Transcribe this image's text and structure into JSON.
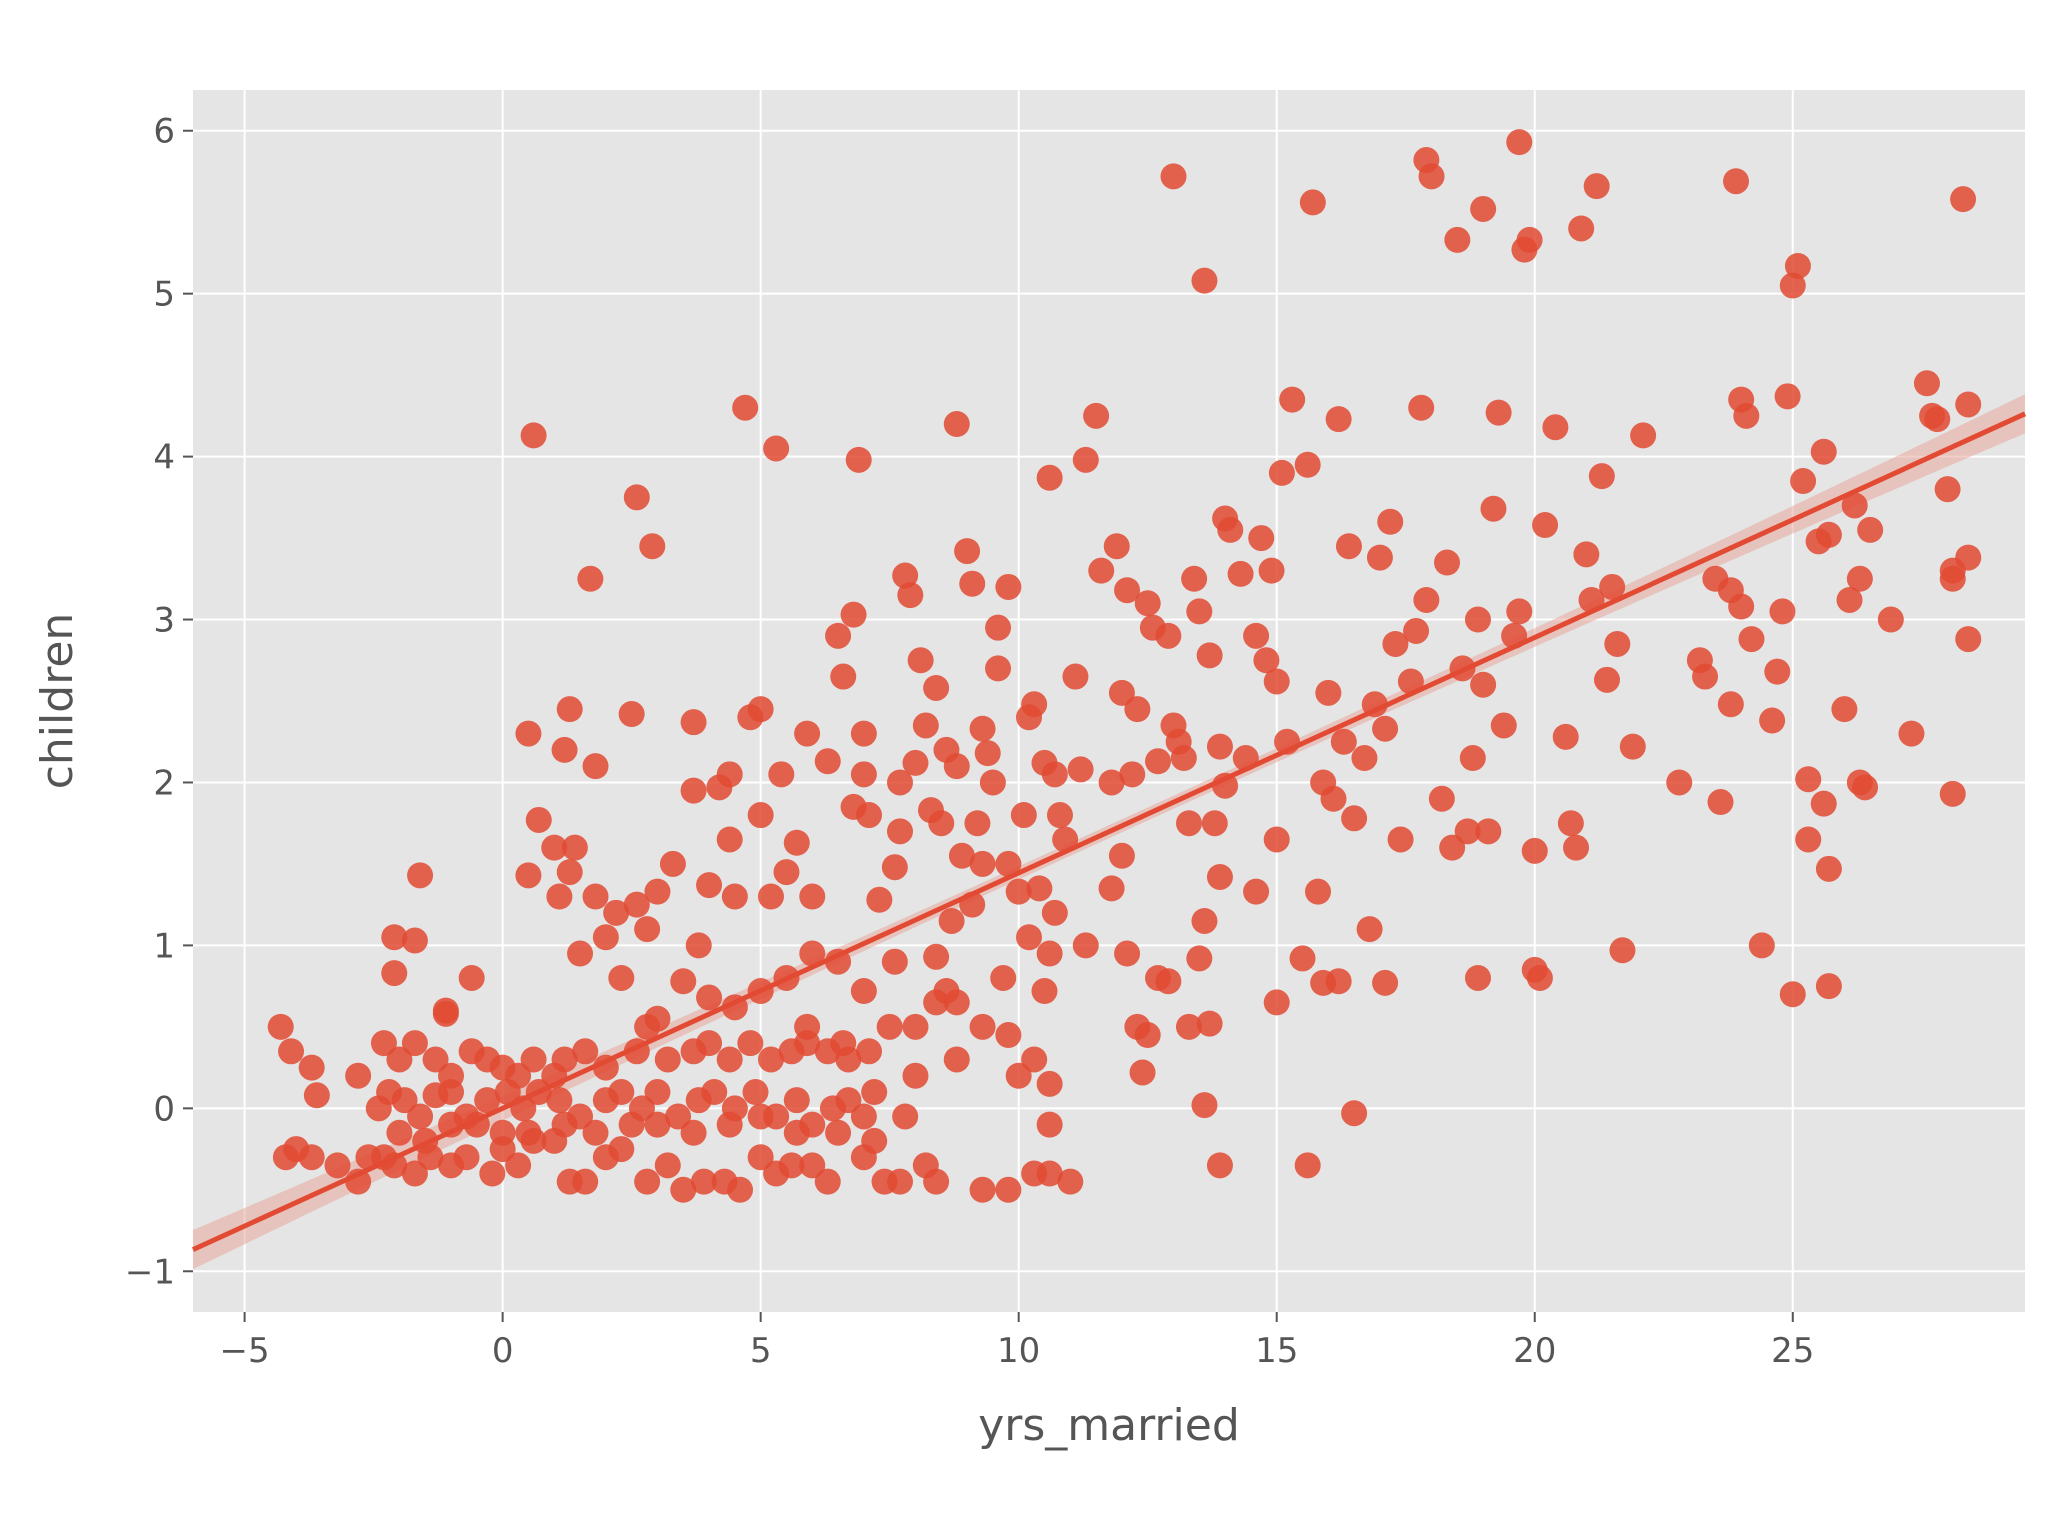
{
  "chart_data": {
    "type": "scatter",
    "xlabel": "yrs_married",
    "ylabel": "children",
    "xlim": [
      -6,
      29.5
    ],
    "ylim": [
      -1.25,
      6.25
    ],
    "xticks": [
      -5,
      0,
      5,
      10,
      15,
      20,
      25
    ],
    "yticks": [
      -1,
      0,
      1,
      2,
      3,
      4,
      5,
      6
    ],
    "xtick_labels": [
      "−5",
      "0",
      "5",
      "10",
      "15",
      "20",
      "25"
    ],
    "ytick_labels": [
      "−1",
      "0",
      "1",
      "2",
      "3",
      "4",
      "5",
      "6"
    ],
    "grid": true,
    "regression": {
      "slope": 0.1445,
      "intercept": 0.0,
      "ci_halfwidth_ends": 0.12,
      "ci_halfwidth_center": 0.04
    },
    "colors": {
      "background": "#e5e5e5",
      "grid": "#ffffff",
      "points": "#e24a33",
      "line": "#e24a33",
      "band": "#e8a79b"
    },
    "points": [
      [
        -4.2,
        -0.3
      ],
      [
        -4.0,
        -0.25
      ],
      [
        -3.7,
        -0.3
      ],
      [
        -3.2,
        -0.35
      ],
      [
        -2.8,
        -0.45
      ],
      [
        -2.6,
        -0.3
      ],
      [
        -2.3,
        -0.3
      ],
      [
        -2.1,
        -0.35
      ],
      [
        -1.7,
        -0.4
      ],
      [
        -1.4,
        -0.3
      ],
      [
        -1.0,
        -0.35
      ],
      [
        -0.7,
        -0.3
      ],
      [
        -0.2,
        -0.4
      ],
      [
        0.0,
        -0.25
      ],
      [
        0.3,
        -0.35
      ],
      [
        0.6,
        -0.2
      ],
      [
        1.0,
        -0.2
      ],
      [
        1.3,
        -0.45
      ],
      [
        1.6,
        -0.45
      ],
      [
        2.0,
        -0.3
      ],
      [
        2.3,
        -0.25
      ],
      [
        2.8,
        -0.45
      ],
      [
        3.2,
        -0.35
      ],
      [
        3.5,
        -0.5
      ],
      [
        3.9,
        -0.45
      ],
      [
        4.3,
        -0.45
      ],
      [
        4.6,
        -0.5
      ],
      [
        5.0,
        -0.3
      ],
      [
        5.3,
        -0.4
      ],
      [
        5.6,
        -0.35
      ],
      [
        6.0,
        -0.35
      ],
      [
        6.3,
        -0.45
      ],
      [
        7.0,
        -0.3
      ],
      [
        7.4,
        -0.45
      ],
      [
        7.7,
        -0.45
      ],
      [
        8.2,
        -0.35
      ],
      [
        8.4,
        -0.45
      ],
      [
        9.3,
        -0.5
      ],
      [
        9.8,
        -0.5
      ],
      [
        10.3,
        -0.4
      ],
      [
        10.6,
        -0.4
      ],
      [
        11.0,
        -0.45
      ],
      [
        13.9,
        -0.35
      ],
      [
        15.6,
        -0.35
      ],
      [
        -4.3,
        0.5
      ],
      [
        -4.1,
        0.35
      ],
      [
        -3.7,
        0.25
      ],
      [
        -3.6,
        0.08
      ],
      [
        -2.8,
        0.2
      ],
      [
        -2.3,
        0.4
      ],
      [
        -2.0,
        0.3
      ],
      [
        -1.7,
        0.4
      ],
      [
        -1.3,
        0.3
      ],
      [
        -1.0,
        0.2
      ],
      [
        -0.6,
        0.35
      ],
      [
        -0.3,
        0.3
      ],
      [
        0.0,
        0.25
      ],
      [
        0.3,
        0.2
      ],
      [
        0.6,
        0.3
      ],
      [
        1.0,
        0.2
      ],
      [
        1.2,
        0.3
      ],
      [
        1.6,
        0.35
      ],
      [
        2.0,
        0.25
      ],
      [
        2.6,
        0.35
      ],
      [
        2.8,
        0.5
      ],
      [
        3.2,
        0.3
      ],
      [
        3.7,
        0.35
      ],
      [
        4.0,
        0.4
      ],
      [
        4.4,
        0.3
      ],
      [
        4.8,
        0.4
      ],
      [
        5.2,
        0.3
      ],
      [
        5.6,
        0.35
      ],
      [
        5.9,
        0.4
      ],
      [
        6.3,
        0.35
      ],
      [
        6.6,
        0.4
      ],
      [
        7.1,
        0.35
      ],
      [
        7.5,
        0.5
      ],
      [
        8.0,
        0.5
      ],
      [
        8.4,
        0.65
      ],
      [
        8.8,
        0.3
      ],
      [
        9.3,
        0.5
      ],
      [
        9.8,
        0.45
      ],
      [
        10.0,
        0.2
      ],
      [
        10.3,
        0.3
      ],
      [
        10.6,
        0.15
      ],
      [
        -2.4,
        0.0
      ],
      [
        -2.2,
        0.1
      ],
      [
        -1.9,
        0.05
      ],
      [
        -1.6,
        -0.05
      ],
      [
        -1.3,
        0.08
      ],
      [
        -1.0,
        0.1
      ],
      [
        -0.7,
        -0.05
      ],
      [
        -0.3,
        0.05
      ],
      [
        0.1,
        0.1
      ],
      [
        0.4,
        0.0
      ],
      [
        0.7,
        0.1
      ],
      [
        1.1,
        0.05
      ],
      [
        1.5,
        -0.05
      ],
      [
        2.0,
        0.05
      ],
      [
        2.3,
        0.1
      ],
      [
        2.7,
        0.0
      ],
      [
        3.0,
        0.1
      ],
      [
        3.4,
        -0.05
      ],
      [
        3.8,
        0.05
      ],
      [
        4.1,
        0.1
      ],
      [
        4.5,
        0.0
      ],
      [
        4.9,
        0.1
      ],
      [
        5.3,
        -0.05
      ],
      [
        5.7,
        0.05
      ],
      [
        6.0,
        -0.1
      ],
      [
        6.4,
        0.0
      ],
      [
        6.7,
        0.05
      ],
      [
        7.0,
        -0.05
      ],
      [
        7.8,
        -0.05
      ],
      [
        -2.0,
        -0.15
      ],
      [
        -1.5,
        -0.2
      ],
      [
        -1.0,
        -0.1
      ],
      [
        -0.5,
        -0.1
      ],
      [
        0.0,
        -0.15
      ],
      [
        0.5,
        -0.15
      ],
      [
        1.2,
        -0.1
      ],
      [
        1.8,
        -0.15
      ],
      [
        2.5,
        -0.1
      ],
      [
        3.0,
        -0.1
      ],
      [
        3.7,
        -0.15
      ],
      [
        4.4,
        -0.1
      ],
      [
        5.0,
        -0.05
      ],
      [
        5.7,
        -0.15
      ],
      [
        6.5,
        -0.15
      ],
      [
        7.2,
        -0.2
      ],
      [
        -2.1,
        1.05
      ],
      [
        -1.7,
        1.03
      ],
      [
        -2.1,
        0.83
      ],
      [
        -1.6,
        1.43
      ],
      [
        -1.1,
        0.58
      ],
      [
        -1.1,
        0.6
      ],
      [
        -0.6,
        0.8
      ],
      [
        0.5,
        1.43
      ],
      [
        0.5,
        2.3
      ],
      [
        0.6,
        4.13
      ],
      [
        0.7,
        1.77
      ],
      [
        1.0,
        1.6
      ],
      [
        1.1,
        1.3
      ],
      [
        1.2,
        2.2
      ],
      [
        1.3,
        2.45
      ],
      [
        1.3,
        1.45
      ],
      [
        1.4,
        1.6
      ],
      [
        1.5,
        0.95
      ],
      [
        1.7,
        3.25
      ],
      [
        1.8,
        2.1
      ],
      [
        1.8,
        1.3
      ],
      [
        2.0,
        1.05
      ],
      [
        2.2,
        1.2
      ],
      [
        2.3,
        0.8
      ],
      [
        2.5,
        2.42
      ],
      [
        2.6,
        3.75
      ],
      [
        2.6,
        1.25
      ],
      [
        2.8,
        1.1
      ],
      [
        2.9,
        3.45
      ],
      [
        3.0,
        1.33
      ],
      [
        3.3,
        1.5
      ],
      [
        3.7,
        2.37
      ],
      [
        3.7,
        1.95
      ],
      [
        3.8,
        1.0
      ],
      [
        4.0,
        1.37
      ],
      [
        4.2,
        1.97
      ],
      [
        4.4,
        2.05
      ],
      [
        4.4,
        1.65
      ],
      [
        4.5,
        1.3
      ],
      [
        4.7,
        4.3
      ],
      [
        4.8,
        2.4
      ],
      [
        5.0,
        1.8
      ],
      [
        5.0,
        2.45
      ],
      [
        5.2,
        1.3
      ],
      [
        5.3,
        4.05
      ],
      [
        5.4,
        2.05
      ],
      [
        5.5,
        1.45
      ],
      [
        5.7,
        1.63
      ],
      [
        5.9,
        2.3
      ],
      [
        6.0,
        1.3
      ],
      [
        6.3,
        2.13
      ],
      [
        6.5,
        2.9
      ],
      [
        6.6,
        2.65
      ],
      [
        6.8,
        3.03
      ],
      [
        6.8,
        1.85
      ],
      [
        6.9,
        3.98
      ],
      [
        7.0,
        2.3
      ],
      [
        7.0,
        2.05
      ],
      [
        7.1,
        1.8
      ],
      [
        7.3,
        1.28
      ],
      [
        7.6,
        1.48
      ],
      [
        7.7,
        2.0
      ],
      [
        7.7,
        1.7
      ],
      [
        7.8,
        3.27
      ],
      [
        7.9,
        3.15
      ],
      [
        8.0,
        2.12
      ],
      [
        8.1,
        2.75
      ],
      [
        8.2,
        2.35
      ],
      [
        8.3,
        1.83
      ],
      [
        8.4,
        2.58
      ],
      [
        8.5,
        1.75
      ],
      [
        8.6,
        2.2
      ],
      [
        8.7,
        1.15
      ],
      [
        8.8,
        2.1
      ],
      [
        8.8,
        4.2
      ],
      [
        8.9,
        1.55
      ],
      [
        9.0,
        3.42
      ],
      [
        9.1,
        3.22
      ],
      [
        9.2,
        1.75
      ],
      [
        9.3,
        2.33
      ],
      [
        9.4,
        2.18
      ],
      [
        9.5,
        2.0
      ],
      [
        9.6,
        2.7
      ],
      [
        9.6,
        2.95
      ],
      [
        9.8,
        3.2
      ],
      [
        9.8,
        1.5
      ],
      [
        10.0,
        1.33
      ],
      [
        10.1,
        1.8
      ],
      [
        10.2,
        2.4
      ],
      [
        10.3,
        2.48
      ],
      [
        10.4,
        1.35
      ],
      [
        10.5,
        2.12
      ],
      [
        10.6,
        3.87
      ],
      [
        10.7,
        2.05
      ],
      [
        10.8,
        1.8
      ],
      [
        10.9,
        1.65
      ],
      [
        11.1,
        2.65
      ],
      [
        11.2,
        2.08
      ],
      [
        11.3,
        3.98
      ],
      [
        11.5,
        4.25
      ],
      [
        11.6,
        3.3
      ],
      [
        11.8,
        2.0
      ],
      [
        11.9,
        3.45
      ],
      [
        12.0,
        2.55
      ],
      [
        12.0,
        1.55
      ],
      [
        12.1,
        3.18
      ],
      [
        12.2,
        2.05
      ],
      [
        12.3,
        2.45
      ],
      [
        12.5,
        3.1
      ],
      [
        12.6,
        2.95
      ],
      [
        12.7,
        2.13
      ],
      [
        12.9,
        2.9
      ],
      [
        13.0,
        2.35
      ],
      [
        13.0,
        5.72
      ],
      [
        13.1,
        2.25
      ],
      [
        13.2,
        2.15
      ],
      [
        13.3,
        1.75
      ],
      [
        13.4,
        3.25
      ],
      [
        13.5,
        3.05
      ],
      [
        13.6,
        5.08
      ],
      [
        13.7,
        2.78
      ],
      [
        13.8,
        1.75
      ],
      [
        13.9,
        2.22
      ],
      [
        14.0,
        3.62
      ],
      [
        14.0,
        1.98
      ],
      [
        14.1,
        3.55
      ],
      [
        14.3,
        3.28
      ],
      [
        14.4,
        2.15
      ],
      [
        14.6,
        2.9
      ],
      [
        14.7,
        3.5
      ],
      [
        14.8,
        2.75
      ],
      [
        14.9,
        3.3
      ],
      [
        15.0,
        2.62
      ],
      [
        15.0,
        1.65
      ],
      [
        15.1,
        3.9
      ],
      [
        15.2,
        2.25
      ],
      [
        15.3,
        4.35
      ],
      [
        15.5,
        0.92
      ],
      [
        15.6,
        3.95
      ],
      [
        15.7,
        5.56
      ],
      [
        15.8,
        1.33
      ],
      [
        15.9,
        2.0
      ],
      [
        16.0,
        2.55
      ],
      [
        16.1,
        1.9
      ],
      [
        16.2,
        4.23
      ],
      [
        16.3,
        2.25
      ],
      [
        16.4,
        3.45
      ],
      [
        16.5,
        1.78
      ],
      [
        16.7,
        2.15
      ],
      [
        16.8,
        1.1
      ],
      [
        16.9,
        2.48
      ],
      [
        17.0,
        3.38
      ],
      [
        17.1,
        2.33
      ],
      [
        17.2,
        3.6
      ],
      [
        17.3,
        2.85
      ],
      [
        17.4,
        1.65
      ],
      [
        17.6,
        2.62
      ],
      [
        17.7,
        2.93
      ],
      [
        17.8,
        4.3
      ],
      [
        17.9,
        5.82
      ],
      [
        17.9,
        3.12
      ],
      [
        18.0,
        5.72
      ],
      [
        18.2,
        1.9
      ],
      [
        18.3,
        3.35
      ],
      [
        18.4,
        1.6
      ],
      [
        18.5,
        5.33
      ],
      [
        18.6,
        2.7
      ],
      [
        18.7,
        1.7
      ],
      [
        18.8,
        2.15
      ],
      [
        18.9,
        3.0
      ],
      [
        19.0,
        2.6
      ],
      [
        19.0,
        5.52
      ],
      [
        19.1,
        1.7
      ],
      [
        19.2,
        3.68
      ],
      [
        19.3,
        4.27
      ],
      [
        19.4,
        2.35
      ],
      [
        19.6,
        2.9
      ],
      [
        19.7,
        3.05
      ],
      [
        19.7,
        5.93
      ],
      [
        19.8,
        5.27
      ],
      [
        19.9,
        5.33
      ],
      [
        20.0,
        1.58
      ],
      [
        20.2,
        3.58
      ],
      [
        20.4,
        4.18
      ],
      [
        20.6,
        2.28
      ],
      [
        20.7,
        1.75
      ],
      [
        20.8,
        1.6
      ],
      [
        20.9,
        5.4
      ],
      [
        21.0,
        3.4
      ],
      [
        21.1,
        3.12
      ],
      [
        21.2,
        5.66
      ],
      [
        21.3,
        3.88
      ],
      [
        21.4,
        2.63
      ],
      [
        21.5,
        3.2
      ],
      [
        21.6,
        2.85
      ],
      [
        21.7,
        0.97
      ],
      [
        21.9,
        2.22
      ],
      [
        22.1,
        4.13
      ],
      [
        22.8,
        2.0
      ],
      [
        23.2,
        2.75
      ],
      [
        23.3,
        2.65
      ],
      [
        23.5,
        3.25
      ],
      [
        23.6,
        1.88
      ],
      [
        23.8,
        3.18
      ],
      [
        23.8,
        2.48
      ],
      [
        23.9,
        5.69
      ],
      [
        24.0,
        4.35
      ],
      [
        24.0,
        3.08
      ],
      [
        24.1,
        4.25
      ],
      [
        24.2,
        2.88
      ],
      [
        24.4,
        1.0
      ],
      [
        24.6,
        2.38
      ],
      [
        24.7,
        2.68
      ],
      [
        24.8,
        3.05
      ],
      [
        24.9,
        4.37
      ],
      [
        25.0,
        5.05
      ],
      [
        25.0,
        0.7
      ],
      [
        25.1,
        5.17
      ],
      [
        25.2,
        3.85
      ],
      [
        25.3,
        2.02
      ],
      [
        25.3,
        1.65
      ],
      [
        25.5,
        3.48
      ],
      [
        25.6,
        4.03
      ],
      [
        25.6,
        1.87
      ],
      [
        25.7,
        3.52
      ],
      [
        25.7,
        1.47
      ],
      [
        25.7,
        0.75
      ],
      [
        26.0,
        2.45
      ],
      [
        26.1,
        3.12
      ],
      [
        26.2,
        3.7
      ],
      [
        26.3,
        3.25
      ],
      [
        26.3,
        2.0
      ],
      [
        26.4,
        1.97
      ],
      [
        26.5,
        3.55
      ],
      [
        26.9,
        3.0
      ],
      [
        27.3,
        2.3
      ],
      [
        27.6,
        4.45
      ],
      [
        27.7,
        4.25
      ],
      [
        27.8,
        4.23
      ],
      [
        28.0,
        3.8
      ],
      [
        28.1,
        3.3
      ],
      [
        28.1,
        3.25
      ],
      [
        28.1,
        1.93
      ],
      [
        28.3,
        5.58
      ],
      [
        28.4,
        4.32
      ],
      [
        28.4,
        3.38
      ],
      [
        28.4,
        2.88
      ],
      [
        3.0,
        0.55
      ],
      [
        3.5,
        0.78
      ],
      [
        4.0,
        0.68
      ],
      [
        4.5,
        0.62
      ],
      [
        5.0,
        0.72
      ],
      [
        5.5,
        0.8
      ],
      [
        6.0,
        0.95
      ],
      [
        6.5,
        0.9
      ],
      [
        7.0,
        0.72
      ],
      [
        7.6,
        0.9
      ],
      [
        8.4,
        0.93
      ],
      [
        8.6,
        0.72
      ],
      [
        8.8,
        0.65
      ],
      [
        9.1,
        1.25
      ],
      [
        9.3,
        1.5
      ],
      [
        9.7,
        0.8
      ],
      [
        10.2,
        1.05
      ],
      [
        10.5,
        0.72
      ],
      [
        10.6,
        0.95
      ],
      [
        10.7,
        1.2
      ],
      [
        11.3,
        1.0
      ],
      [
        11.8,
        1.35
      ],
      [
        12.1,
        0.95
      ],
      [
        12.3,
        0.5
      ],
      [
        12.5,
        0.45
      ],
      [
        12.7,
        0.8
      ],
      [
        12.9,
        0.78
      ],
      [
        13.3,
        0.5
      ],
      [
        13.5,
        0.92
      ],
      [
        13.6,
        1.15
      ],
      [
        13.7,
        0.52
      ],
      [
        13.9,
        1.42
      ],
      [
        14.6,
        1.33
      ],
      [
        15.0,
        0.65
      ],
      [
        15.9,
        0.77
      ],
      [
        16.2,
        0.78
      ],
      [
        17.1,
        0.77
      ],
      [
        18.9,
        0.8
      ],
      [
        20.0,
        0.85
      ],
      [
        20.1,
        0.8
      ],
      [
        12.4,
        0.22
      ],
      [
        13.6,
        0.02
      ],
      [
        16.5,
        -0.03
      ],
      [
        10.6,
        -0.1
      ],
      [
        7.2,
        0.1
      ],
      [
        8.0,
        0.2
      ],
      [
        6.7,
        0.3
      ],
      [
        5.9,
        0.5
      ]
    ]
  }
}
